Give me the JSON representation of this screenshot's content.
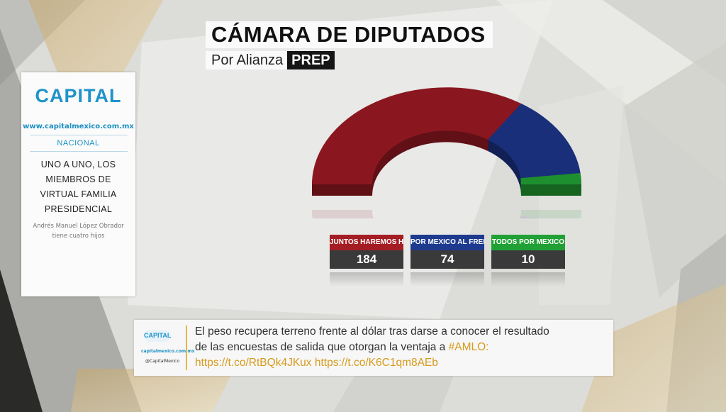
{
  "title": "CÁMARA DE DIPUTADOS",
  "subtitle": {
    "text": "Por Alianza",
    "badge": "PREP"
  },
  "card": {
    "logo": "CAPITAL",
    "url": "www.capitalmexico.com.mx",
    "section": "NACIONAL",
    "headline": "UNO A UNO, LOS MIEMBROS DE VIRTUAL FAMILIA PRESIDENCIAL",
    "description": "Andrés Manuel López Obrador tiene cuatro hijos"
  },
  "chart_data": {
    "type": "pie",
    "categories": [
      "JUNTOS HAREMOS HISTORIA",
      "POR MEXICO AL FRENTE",
      "TODOS POR MEXICO"
    ],
    "values": [
      184,
      74,
      10
    ],
    "colors": [
      "#8a1720",
      "#1a2f7a",
      "#1e8f2e"
    ]
  },
  "legend": [
    {
      "label": "JUNTOS HAREMOS HISTORIA",
      "value": "184",
      "color": "#a51d24"
    },
    {
      "label": "POR MEXICO AL FRENTE",
      "value": "74",
      "color": "#1d3a8f"
    },
    {
      "label": "TODOS POR MEXICO",
      "value": "10",
      "color": "#21a035"
    }
  ],
  "ticker": {
    "logo": "CAPITAL",
    "url": "capitalmexico.com.mx",
    "handle": "@CapitalMexico",
    "text_line1": "El peso recupera terreno frente al dólar tras darse a conocer el resultado",
    "text_line2a": "de las encuestas de salida que otorgan la ventaja a ",
    "hashtag": "#AMLO:",
    "link1": "https://t.co/RtBQk4JKux",
    "link2": "https://t.co/K6C1qm8AEb"
  }
}
